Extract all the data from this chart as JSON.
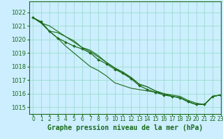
{
  "background_color": "#cceeff",
  "grid_color": "#99ddcc",
  "line_color": "#1a6b1a",
  "marker_color": "#1a6b1a",
  "xlabel": "Graphe pression niveau de la mer (hPa)",
  "xlabel_fontsize": 7,
  "ylim": [
    1014.5,
    1022.8
  ],
  "xlim": [
    -0.5,
    23
  ],
  "xticks": [
    0,
    1,
    2,
    3,
    4,
    5,
    6,
    7,
    8,
    9,
    10,
    11,
    12,
    13,
    14,
    15,
    16,
    17,
    18,
    19,
    20,
    21,
    22,
    23
  ],
  "yticks": [
    1015,
    1016,
    1017,
    1018,
    1019,
    1020,
    1021,
    1022
  ],
  "series_markers": [
    [
      1021.6,
      1021.3,
      1020.6,
      1020.1,
      1019.8,
      1019.5,
      1019.3,
      1019.0,
      1018.5,
      1018.2,
      1017.8,
      1017.5,
      1017.1,
      1016.6,
      1016.3,
      1016.1,
      1015.9,
      1015.8,
      1015.7,
      1015.4,
      1015.2,
      1015.2,
      1015.8,
      1015.9
    ]
  ],
  "series_plain": [
    [
      1021.6,
      1021.2,
      1020.6,
      1020.5,
      1020.2,
      1019.8,
      1019.4,
      1019.1,
      1018.7,
      1018.3,
      1017.9,
      1017.5,
      1017.2,
      1016.7,
      1016.5,
      1016.2,
      1016.0,
      1015.8,
      1015.7,
      1015.4,
      1015.2,
      1015.2,
      1015.8,
      1015.9
    ],
    [
      1021.6,
      1021.2,
      1021.0,
      1020.6,
      1020.2,
      1019.9,
      1019.4,
      1019.2,
      1018.8,
      1018.3,
      1017.9,
      1017.6,
      1017.2,
      1016.7,
      1016.5,
      1016.2,
      1016.0,
      1015.8,
      1015.7,
      1015.4,
      1015.2,
      1015.2,
      1015.8,
      1015.9
    ]
  ],
  "series_steep": [
    [
      1021.6,
      1021.2,
      1020.6,
      1020.1,
      1019.5,
      1019.0,
      1018.5,
      1018.0,
      1017.7,
      1017.3,
      1016.8,
      1016.6,
      1016.4,
      1016.3,
      1016.2,
      1016.1,
      1016.0,
      1015.9,
      1015.8,
      1015.5,
      1015.3,
      1015.2,
      1015.8,
      1015.9
    ]
  ]
}
